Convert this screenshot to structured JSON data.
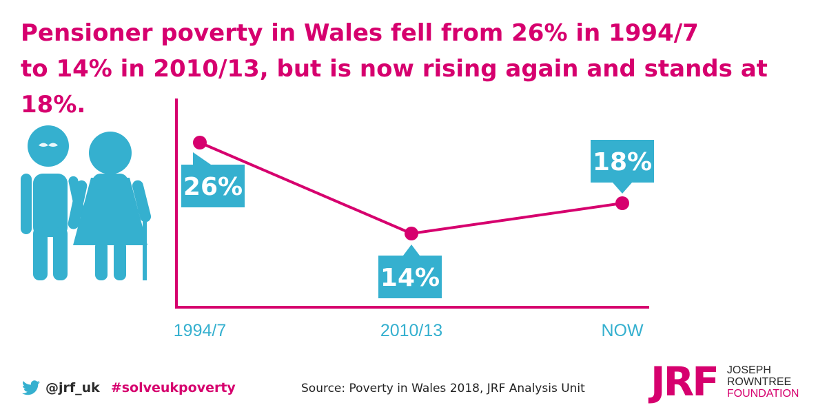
{
  "headline": {
    "line1": [
      {
        "text": "Pensioner poverty in Wales ",
        "bold": false
      },
      {
        "text": "fell from 26%",
        "bold": true
      },
      {
        "text": " in ",
        "bold": false
      },
      {
        "text": "1994/7",
        "bold": true
      }
    ],
    "line2": [
      {
        "text": "to ",
        "bold": false
      },
      {
        "text": "14%",
        "bold": true
      },
      {
        "text": " in ",
        "bold": false
      },
      {
        "text": "2010/13",
        "bold": true
      },
      {
        "text": ", but is now ",
        "bold": false
      },
      {
        "text": "rising again",
        "bold": true
      },
      {
        "text": " and stands at ",
        "bold": false
      },
      {
        "text": "18%",
        "bold": true
      },
      {
        "text": ".",
        "bold": false
      }
    ]
  },
  "chart_data": {
    "type": "line",
    "categories": [
      "1994/7",
      "2010/13",
      "NOW"
    ],
    "values": [
      26,
      14,
      18
    ],
    "data_labels": [
      "26%",
      "14%",
      "18%"
    ],
    "title": "",
    "xlabel": "",
    "ylabel": "",
    "grid": false,
    "legend": "none"
  },
  "colors": {
    "magenta": "#d6006e",
    "cyan": "#35b0cf",
    "dark": "#2b2b2b"
  },
  "icons": {
    "illustration": "elderly-couple-icon",
    "social": "twitter-bird-icon"
  },
  "footer": {
    "handle": "@jrf_uk",
    "hashtag": "#solveukpoverty",
    "source": "Source: Poverty in Wales 2018, JRF Analysis Unit"
  },
  "logo": {
    "mark": "JRF",
    "line1": "JOSEPH",
    "line2": "ROWNTREE",
    "line3": "FOUNDATION"
  }
}
